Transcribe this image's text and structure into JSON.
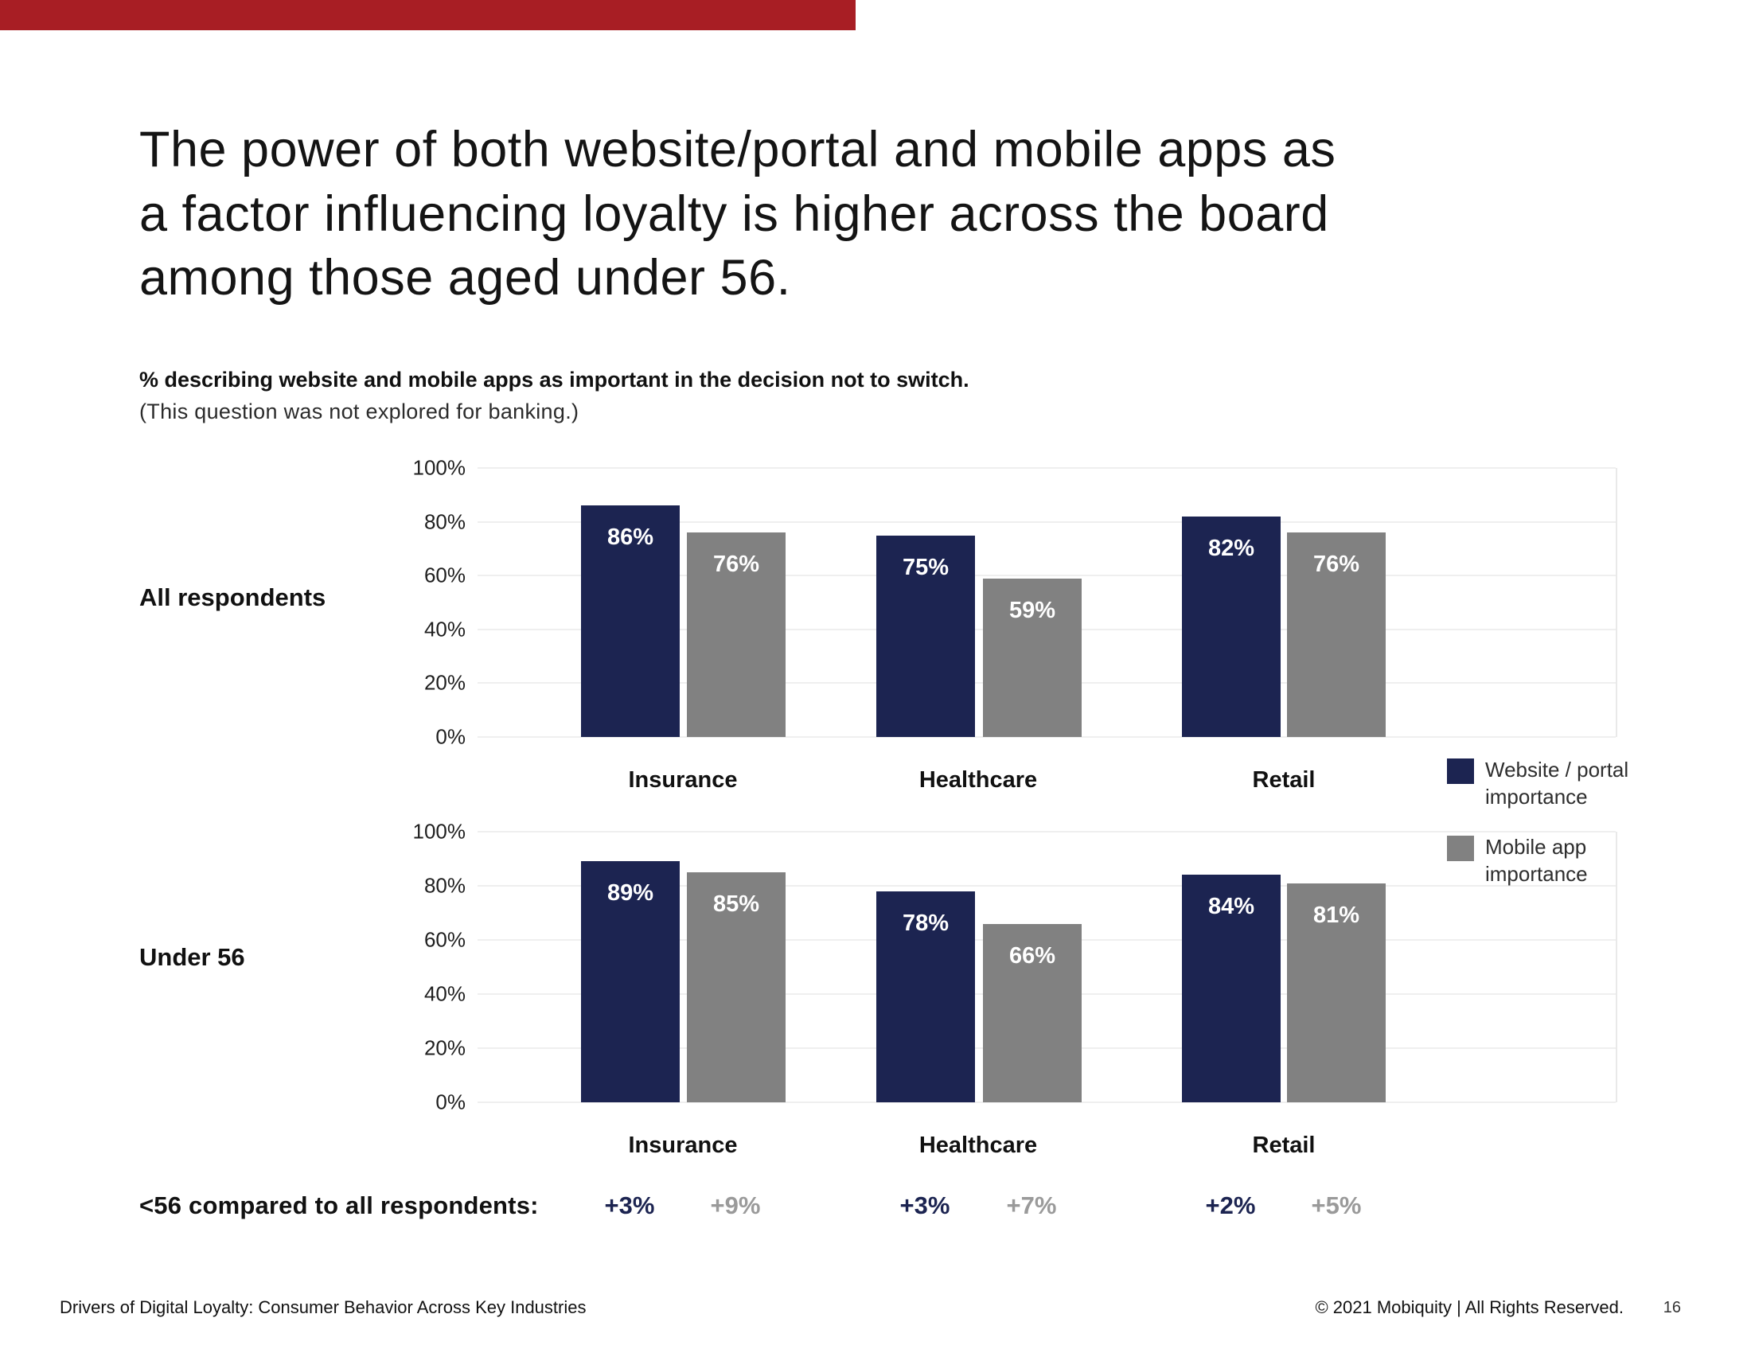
{
  "title_lines": [
    "The power of both website/portal and mobile apps as",
    "a factor influencing loyalty is higher across the board",
    "among those aged under 56."
  ],
  "subtitle_bold": "% describing website and mobile apps as important in the decision not to switch.",
  "subtitle_note": "(This question was not explored for banking.)",
  "colors": {
    "accent_bar": "#A81E24",
    "website_navy": "#1C2451",
    "mobile_gray": "#818181",
    "comparison_navy": "#1C2451",
    "comparison_gray": "#9A9A9A",
    "gridline": "#EFEFEF",
    "value_label": "#FFFFFF"
  },
  "legend": {
    "items": [
      {
        "line1": "Website / portal",
        "line2": "importance",
        "color": "#1C2451"
      },
      {
        "line1": "Mobile app",
        "line2": "importance",
        "color": "#818181"
      }
    ]
  },
  "chart_data": {
    "type": "bar",
    "categories": [
      "Insurance",
      "Healthcare",
      "Retail"
    ],
    "yticks": [
      "100%",
      "80%",
      "60%",
      "40%",
      "20%",
      "0%"
    ],
    "ylim": [
      0,
      100
    ],
    "grid": "horizontal",
    "legend_position": "right",
    "charts": [
      {
        "row_label": "All respondents",
        "series": [
          {
            "name": "Website / portal importance",
            "values": [
              86,
              75,
              82
            ]
          },
          {
            "name": "Mobile app importance",
            "values": [
              76,
              59,
              76
            ]
          }
        ]
      },
      {
        "row_label": "Under 56",
        "series": [
          {
            "name": "Website / portal importance",
            "values": [
              89,
              78,
              84
            ]
          },
          {
            "name": "Mobile app importance",
            "values": [
              85,
              66,
              81
            ]
          }
        ]
      }
    ],
    "comparison_row": {
      "label": "<56 compared to all respondents:",
      "pairs": [
        [
          "+3%",
          "+9%"
        ],
        [
          "+3%",
          "+7%"
        ],
        [
          "+2%",
          "+5%"
        ]
      ]
    }
  },
  "footer": {
    "left": "Drivers of Digital Loyalty: Consumer Behavior Across Key Industries",
    "right": "© 2021 Mobiquity  |  All Rights Reserved.",
    "page": "16"
  }
}
